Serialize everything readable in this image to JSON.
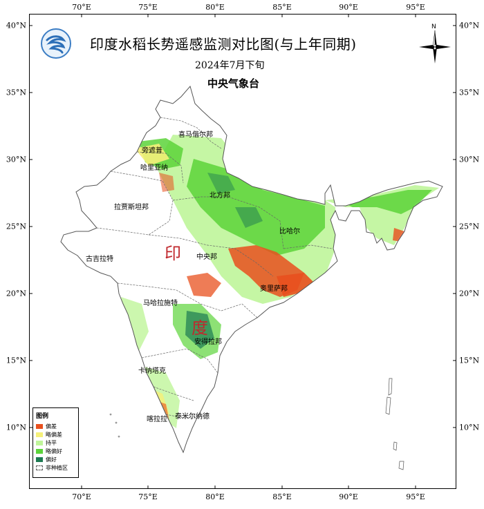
{
  "title": "印度水稻长势遥感监测对比图(与上年同期)",
  "subtitle": "2024年7月下旬",
  "agency": "中央气象台",
  "north_label": "N",
  "country_chars": [
    "印",
    "度"
  ],
  "axes": {
    "lon_labels": [
      "70°E",
      "75°E",
      "80°E",
      "85°E",
      "90°E",
      "95°E"
    ],
    "lat_labels": [
      "40°N",
      "35°N",
      "30°N",
      "25°N",
      "20°N",
      "15°N",
      "10°N"
    ]
  },
  "states": [
    {
      "name": "喜马偕尔邦"
    },
    {
      "name": "旁遮普"
    },
    {
      "name": "哈里亚纳"
    },
    {
      "name": "北方邦"
    },
    {
      "name": "拉贾斯坦邦"
    },
    {
      "name": "比哈尔"
    },
    {
      "name": "古吉拉特"
    },
    {
      "name": "中央邦"
    },
    {
      "name": "奥里萨邦"
    },
    {
      "name": "马哈拉施特"
    },
    {
      "name": "安得拉邦"
    },
    {
      "name": "卡纳塔克"
    },
    {
      "name": "泰米尔纳德"
    },
    {
      "name": "喀拉拉"
    }
  ],
  "legend": {
    "title": "图例",
    "items": [
      {
        "label": "偏差",
        "color": "#e8501e"
      },
      {
        "label": "略偏差",
        "color": "#f5f07a"
      },
      {
        "label": "持平",
        "color": "#bff59a"
      },
      {
        "label": "略偏好",
        "color": "#5cd43a"
      },
      {
        "label": "偏好",
        "color": "#1d7a52"
      },
      {
        "label": "非种植区",
        "color": "#ffffff"
      }
    ]
  },
  "colors": {
    "worse": "#e8501e",
    "slightly_worse": "#f5f07a",
    "same": "#bff59a",
    "slightly_better": "#5cd43a",
    "better": "#1d7a52",
    "country_label": "#c0282d"
  }
}
